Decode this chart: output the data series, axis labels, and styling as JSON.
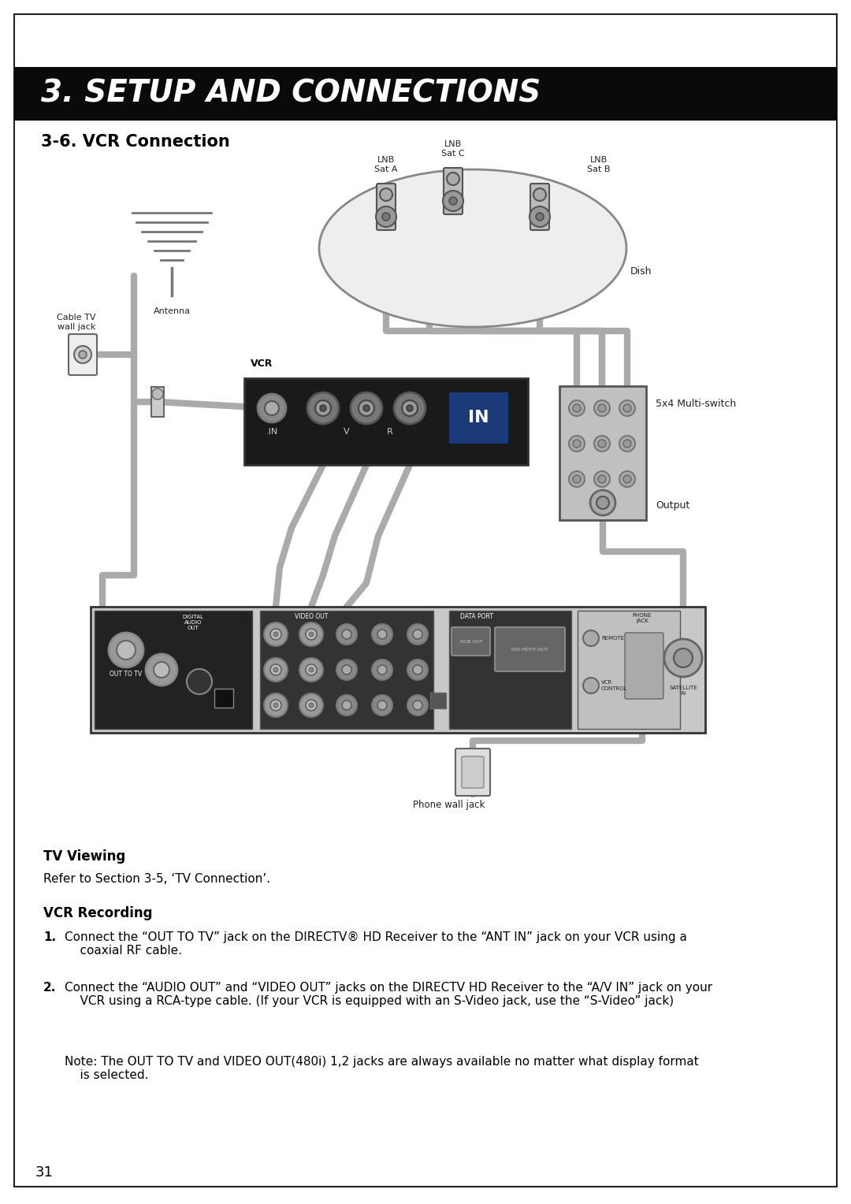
{
  "page_bg": "#ffffff",
  "header_bg": "#0a0a0a",
  "header_text": "3. SETUP AND CONNECTIONS",
  "header_text_color": "#ffffff",
  "section_title": "3-6. VCR Connection",
  "section_title_color": "#000000",
  "border_color": "#222222",
  "tv_viewing_label": "TV Viewing",
  "tv_viewing_text": "Refer to Section 3-5, ‘TV Connection’.",
  "vcr_recording_label": "VCR Recording",
  "step1_text": "Connect the “OUT TO TV” jack on the DIRECTV® HD Receiver to the “ANT IN” jack on your VCR using a\n    coaxial RF cable.",
  "step2_text": "Connect the “AUDIO OUT” and “VIDEO OUT” jacks on the DIRECTV HD Receiver to the “A/V IN” jack on your\n    VCR using a RCA-type cable. (If your VCR is equipped with an S-Video jack, use the “S-Video” jack)",
  "note_text": "Note: The OUT TO TV and VIDEO OUT(480i) 1,2 jacks are always available no matter what display format\n    is selected.",
  "page_number": "31",
  "cable_gray": "#aaaaaa",
  "cable_dark": "#888888",
  "device_fill": "#d8d8d8",
  "device_edge": "#444444"
}
